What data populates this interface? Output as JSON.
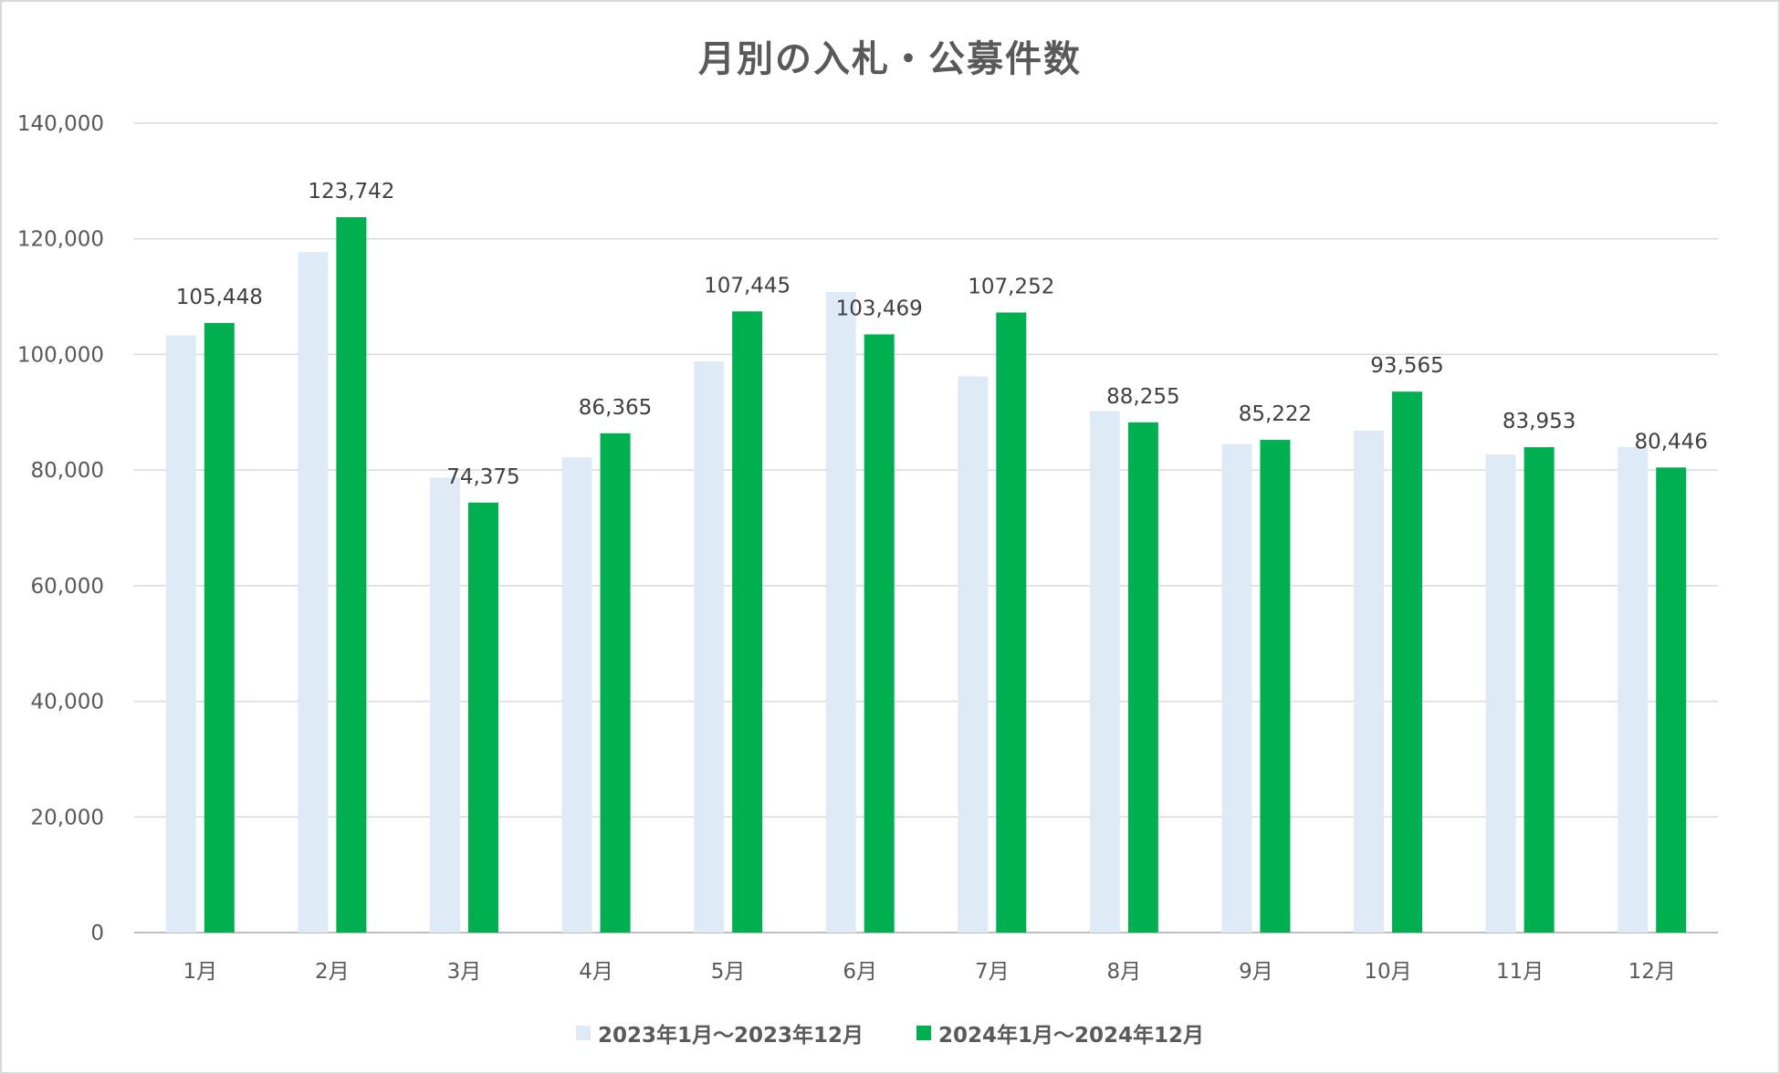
{
  "chart_data": {
    "type": "bar",
    "title": "月別の入札・公募件数",
    "categories": [
      "1月",
      "2月",
      "3月",
      "4月",
      "5月",
      "6月",
      "7月",
      "8月",
      "9月",
      "10月",
      "11月",
      "12月"
    ],
    "series": [
      {
        "name": "2023年1月～2023年12月",
        "color": "#deebf7",
        "values": [
          103300,
          117700,
          78700,
          82200,
          98800,
          110800,
          96200,
          90200,
          84500,
          86800,
          82700,
          84000
        ],
        "show_labels": false
      },
      {
        "name": "2024年1月～2024年12月",
        "color": "#00b050",
        "values": [
          105448,
          123742,
          74375,
          86365,
          107445,
          103469,
          107252,
          88255,
          85222,
          93565,
          83953,
          80446
        ],
        "show_labels": true,
        "labels": [
          "105,448",
          "123,742",
          "74,375",
          "86,365",
          "107,445",
          "103,469",
          "107,252",
          "88,255",
          "85,222",
          "93,565",
          "83,953",
          "80,446"
        ]
      }
    ],
    "ylim": [
      0,
      140000
    ],
    "y_ticks": [
      "0",
      "20,000",
      "40,000",
      "60,000",
      "80,000",
      "100,000",
      "120,000",
      "140,000"
    ],
    "y_tick_values": [
      0,
      20000,
      40000,
      60000,
      80000,
      100000,
      120000,
      140000
    ],
    "grid": true,
    "legend_position": "bottom",
    "gridline_color": "#d9d9d9",
    "axis_color": "#bfbfbf"
  }
}
